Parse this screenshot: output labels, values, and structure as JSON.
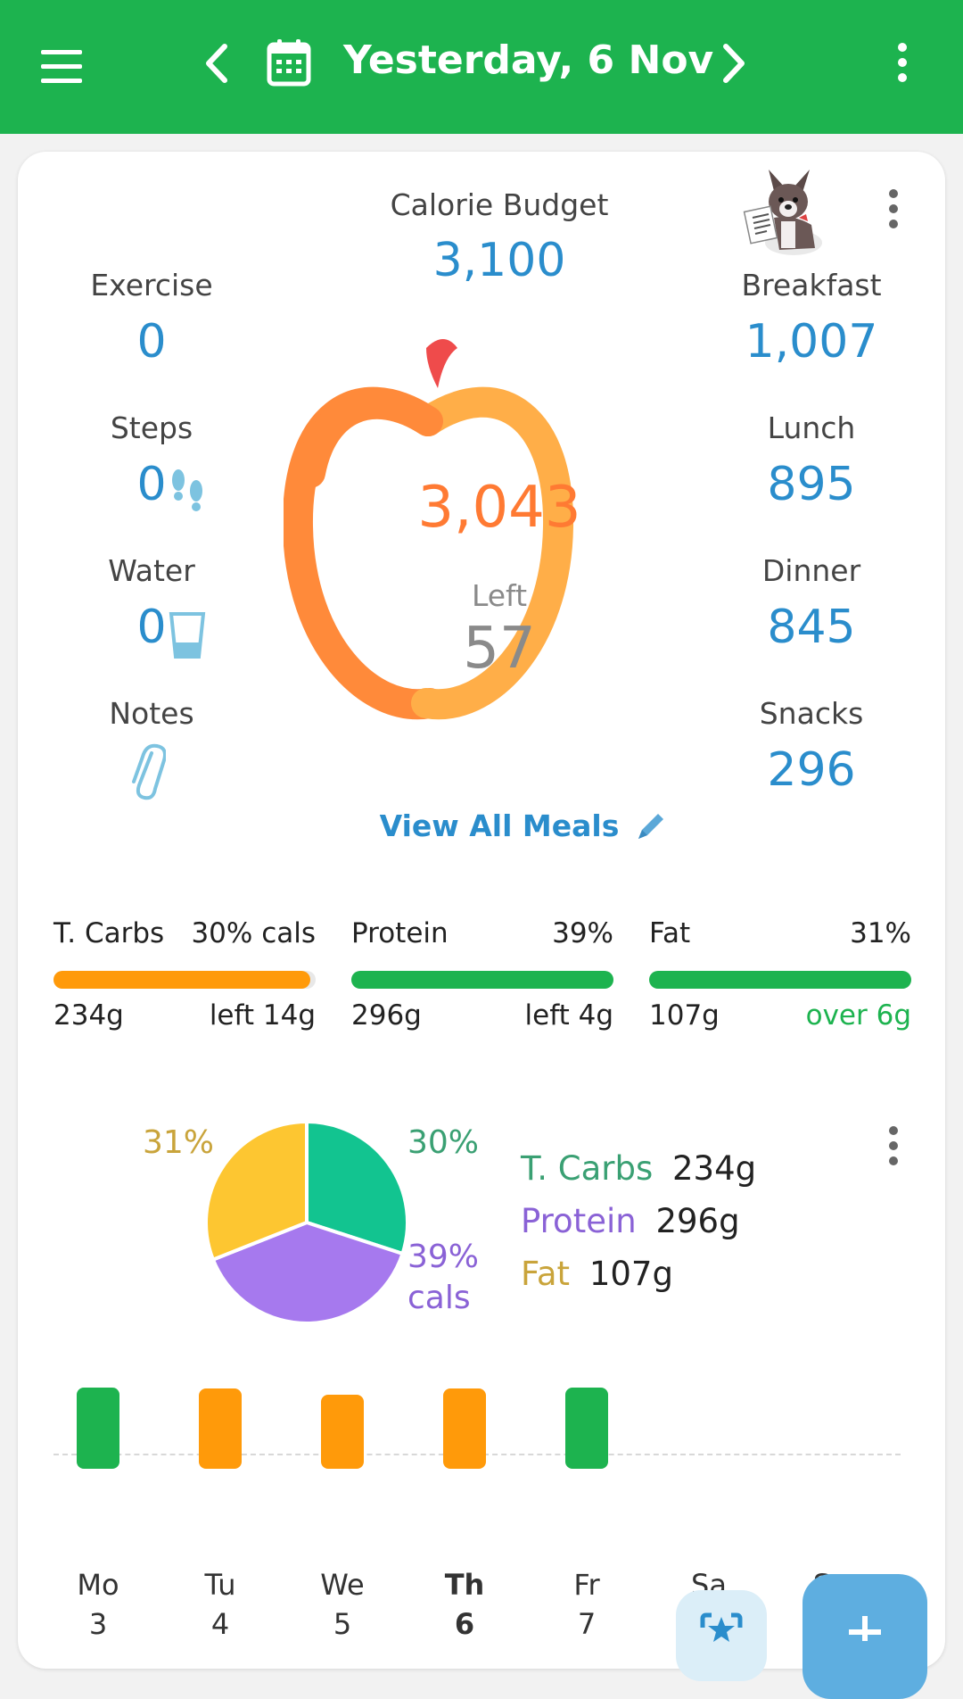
{
  "header": {
    "date_title": "Yesterday, 6 Nov",
    "bg_color": "#1db34f"
  },
  "budget": {
    "label": "Calorie Budget",
    "value": "3,100",
    "consumed": "3,043",
    "left_label": "Left",
    "left_value": "57"
  },
  "left_stats": [
    {
      "label": "Exercise",
      "value": "0"
    },
    {
      "label": "Steps",
      "value": "0",
      "icon": "footsteps-icon"
    },
    {
      "label": "Water",
      "value": "0",
      "icon": "glass-icon"
    },
    {
      "label": "Notes",
      "icon": "paperclip-icon"
    }
  ],
  "meals": [
    {
      "label": "Breakfast",
      "value": "1,007"
    },
    {
      "label": "Lunch",
      "value": "895"
    },
    {
      "label": "Dinner",
      "value": "845"
    },
    {
      "label": "Snacks",
      "value": "296"
    }
  ],
  "view_all_meals": "View All Meals",
  "macros": [
    {
      "name": "T. Carbs",
      "pct": "30% cals",
      "grams": "234g",
      "status": "left 14g",
      "fill": 0.98,
      "color": "#ff9a0a",
      "status_color": "#222"
    },
    {
      "name": "Protein",
      "pct": "39%",
      "grams": "296g",
      "status": "left 4g",
      "fill": 1.0,
      "color": "#1db34f",
      "status_color": "#222"
    },
    {
      "name": "Fat",
      "pct": "31%",
      "grams": "107g",
      "status": "over 6g",
      "fill": 1.0,
      "color": "#1db34f",
      "status_color": "#1db34f"
    }
  ],
  "chart_data": {
    "type": "pie",
    "slices": [
      {
        "name": "T. Carbs",
        "percent": 30,
        "color": "#12c490",
        "label_color": "#3aa073"
      },
      {
        "name": "Protein",
        "percent": 39,
        "color": "#a679ee",
        "label_color": "#8a62d6"
      },
      {
        "name": "Fat",
        "percent": 31,
        "color": "#fdc631",
        "label_color": "#c9a43b"
      }
    ],
    "pct_labels": [
      "30%",
      "39%",
      "cals",
      "31%"
    ],
    "legend": [
      {
        "name": "T. Carbs",
        "grams": "234g"
      },
      {
        "name": "Protein",
        "grams": "296g"
      },
      {
        "name": "Fat",
        "grams": "107g"
      }
    ]
  },
  "week": [
    {
      "day": "Mo",
      "date": "3",
      "color": "#1db34f",
      "level": 0.93
    },
    {
      "day": "Tu",
      "date": "4",
      "color": "#ff9a0a",
      "level": 0.92
    },
    {
      "day": "We",
      "date": "5",
      "color": "#ff9a0a",
      "level": 0.85
    },
    {
      "day": "Th",
      "date": "6",
      "color": "#ff9a0a",
      "level": 0.92,
      "selected": true
    },
    {
      "day": "Fr",
      "date": "7",
      "color": "#1db34f",
      "level": 0.93
    },
    {
      "day": "Sa",
      "date": ""
    },
    {
      "day": "Su",
      "date": ""
    }
  ]
}
